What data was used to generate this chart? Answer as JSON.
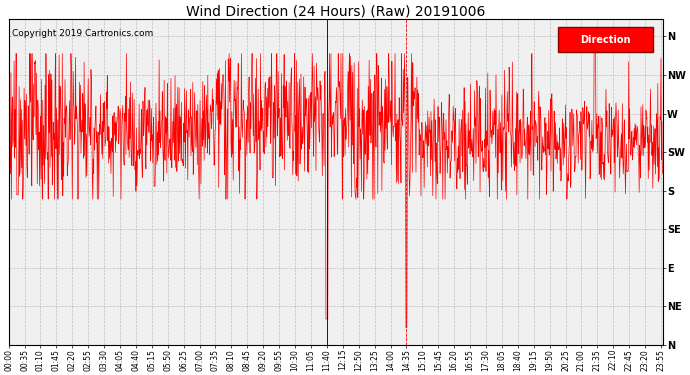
{
  "title": "Wind Direction (24 Hours) (Raw) 20191006",
  "copyright": "Copyright 2019 Cartronics.com",
  "legend_label": "Direction",
  "line_color": "#FF0000",
  "bg_color": "#FFFFFF",
  "plot_bg": "#F0F0F0",
  "grid_color": "#AAAAAA",
  "ytick_labels": [
    "N",
    "NW",
    "W",
    "SW",
    "S",
    "SE",
    "E",
    "NE",
    "N"
  ],
  "ytick_values": [
    360,
    315,
    270,
    225,
    180,
    135,
    90,
    45,
    0
  ],
  "ylim": [
    0,
    380
  ],
  "title_fontsize": 10,
  "copyright_fontsize": 6.5,
  "tick_fontsize": 5.5
}
